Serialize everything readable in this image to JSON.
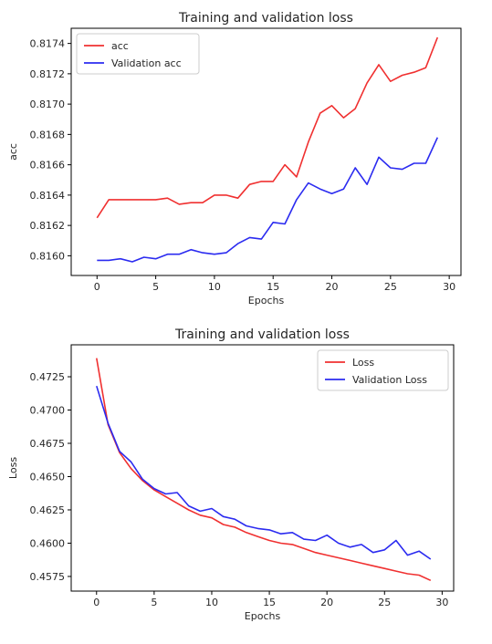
{
  "chart_data": [
    {
      "type": "line",
      "title": "Training and validation loss",
      "xlabel": "Epochs",
      "ylabel": "acc",
      "xlim": [
        -2.2,
        31.0
      ],
      "ylim": [
        0.81587,
        0.8175
      ],
      "xticks": [
        0,
        5,
        10,
        15,
        20,
        25,
        30
      ],
      "yticks": [
        0.816,
        0.8162,
        0.8164,
        0.8166,
        0.8168,
        0.817,
        0.8172,
        0.8174
      ],
      "tick_decimals": 4,
      "legend_position": "upper-left",
      "x": [
        0,
        1,
        2,
        3,
        4,
        5,
        6,
        7,
        8,
        9,
        10,
        11,
        12,
        13,
        14,
        15,
        16,
        17,
        18,
        19,
        20,
        21,
        22,
        23,
        24,
        25,
        26,
        27,
        28,
        29
      ],
      "series": [
        {
          "name": "acc",
          "color": "#f03030",
          "values": [
            0.81625,
            0.81637,
            0.81637,
            0.81637,
            0.81637,
            0.81637,
            0.81638,
            0.81634,
            0.81635,
            0.81635,
            0.8164,
            0.8164,
            0.81638,
            0.81647,
            0.81649,
            0.81649,
            0.8166,
            0.81652,
            0.81675,
            0.81694,
            0.81699,
            0.81691,
            0.81697,
            0.81714,
            0.81726,
            0.81715,
            0.81719,
            0.81721,
            0.81724,
            0.81744
          ]
        },
        {
          "name": "Validation acc",
          "color": "#2b2bf0",
          "values": [
            0.81597,
            0.81597,
            0.81598,
            0.81596,
            0.81599,
            0.81598,
            0.81601,
            0.81601,
            0.81604,
            0.81602,
            0.81601,
            0.81602,
            0.81608,
            0.81612,
            0.81611,
            0.81622,
            0.81621,
            0.81637,
            0.81648,
            0.81644,
            0.81641,
            0.81644,
            0.81658,
            0.81647,
            0.81665,
            0.81658,
            0.81657,
            0.81661,
            0.81661,
            0.81678
          ]
        }
      ]
    },
    {
      "type": "line",
      "title": "Training and validation loss",
      "xlabel": "Epochs",
      "ylabel": "Loss",
      "xlim": [
        -2.2,
        31.0
      ],
      "ylim": [
        0.4564,
        0.4749
      ],
      "xticks": [
        0,
        5,
        10,
        15,
        20,
        25,
        30
      ],
      "yticks": [
        0.4575,
        0.46,
        0.4625,
        0.465,
        0.4675,
        0.47,
        0.4725
      ],
      "tick_decimals": 4,
      "legend_position": "upper-right",
      "x": [
        0,
        1,
        2,
        3,
        4,
        5,
        6,
        7,
        8,
        9,
        10,
        11,
        12,
        13,
        14,
        15,
        16,
        17,
        18,
        19,
        20,
        21,
        22,
        23,
        24,
        25,
        26,
        27,
        28,
        29
      ],
      "series": [
        {
          "name": "Loss",
          "color": "#f03030",
          "values": [
            0.4739,
            0.4689,
            0.4668,
            0.4656,
            0.4647,
            0.464,
            0.4635,
            0.463,
            0.4625,
            0.4621,
            0.4619,
            0.4614,
            0.4612,
            0.4608,
            0.4605,
            0.4602,
            0.46,
            0.4599,
            0.4596,
            0.4593,
            0.4591,
            0.4589,
            0.4587,
            0.4585,
            0.4583,
            0.4581,
            0.4579,
            0.4577,
            0.4576,
            0.4572
          ]
        },
        {
          "name": "Validation Loss",
          "color": "#2b2bf0",
          "values": [
            0.4718,
            0.469,
            0.4669,
            0.4661,
            0.4648,
            0.4641,
            0.4637,
            0.4638,
            0.4628,
            0.4624,
            0.4626,
            0.462,
            0.4618,
            0.4613,
            0.4611,
            0.461,
            0.4607,
            0.4608,
            0.4603,
            0.4602,
            0.4606,
            0.46,
            0.4597,
            0.4599,
            0.4593,
            0.4595,
            0.4602,
            0.4591,
            0.4594,
            0.4588
          ]
        }
      ]
    }
  ]
}
